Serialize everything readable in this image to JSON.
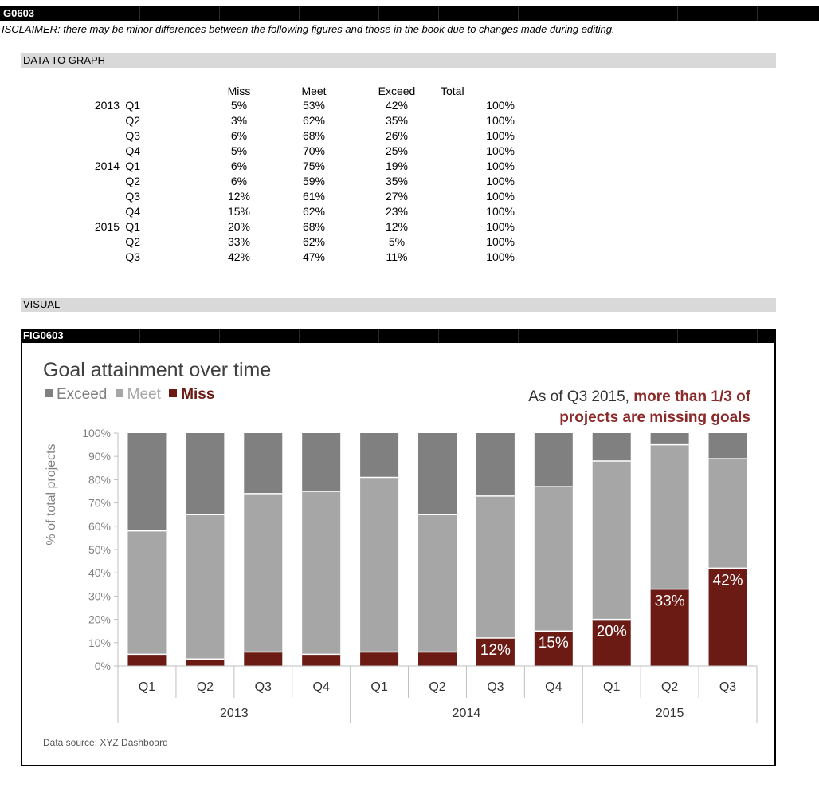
{
  "header": {
    "code": "G0603",
    "disclaimer": "ISCLAIMER: there may be minor differences between the following figures and those in the book due to changes made during editing."
  },
  "sections": {
    "data_title": "DATA TO GRAPH",
    "visual_title": "VISUAL"
  },
  "table": {
    "headers": {
      "miss": "Miss",
      "meet": "Meet",
      "exceed": "Exceed",
      "total": "Total"
    },
    "rows": [
      {
        "year": "2013",
        "quarter": "Q1",
        "miss": "5%",
        "meet": "53%",
        "exceed": "42%",
        "total": "100%"
      },
      {
        "year": "",
        "quarter": "Q2",
        "miss": "3%",
        "meet": "62%",
        "exceed": "35%",
        "total": "100%"
      },
      {
        "year": "",
        "quarter": "Q3",
        "miss": "6%",
        "meet": "68%",
        "exceed": "26%",
        "total": "100%"
      },
      {
        "year": "",
        "quarter": "Q4",
        "miss": "5%",
        "meet": "70%",
        "exceed": "25%",
        "total": "100%"
      },
      {
        "year": "2014",
        "quarter": "Q1",
        "miss": "6%",
        "meet": "75%",
        "exceed": "19%",
        "total": "100%"
      },
      {
        "year": "",
        "quarter": "Q2",
        "miss": "6%",
        "meet": "59%",
        "exceed": "35%",
        "total": "100%"
      },
      {
        "year": "",
        "quarter": "Q3",
        "miss": "12%",
        "meet": "61%",
        "exceed": "27%",
        "total": "100%"
      },
      {
        "year": "",
        "quarter": "Q4",
        "miss": "15%",
        "meet": "62%",
        "exceed": "23%",
        "total": "100%"
      },
      {
        "year": "2015",
        "quarter": "Q1",
        "miss": "20%",
        "meet": "68%",
        "exceed": "12%",
        "total": "100%"
      },
      {
        "year": "",
        "quarter": "Q2",
        "miss": "33%",
        "meet": "62%",
        "exceed": "5%",
        "total": "100%"
      },
      {
        "year": "",
        "quarter": "Q3",
        "miss": "42%",
        "meet": "47%",
        "exceed": "11%",
        "total": "100%"
      }
    ]
  },
  "figure": {
    "code": "FIG0603",
    "legend": {
      "exceed": "Exceed",
      "meet": "Meet",
      "miss": "Miss"
    },
    "annotation": {
      "plain": "As of Q3 2015, ",
      "highlight_1": "more than 1/3 of",
      "highlight_2": "projects are missing goals"
    },
    "source": "Data source: XYZ Dashboard"
  },
  "colors": {
    "exceed": "#808080",
    "meet": "#a6a6a6",
    "miss": "#6b1a14",
    "highlight": "#8b2a2a"
  },
  "chart_data": {
    "type": "bar",
    "stacked": true,
    "title": "Goal attainment over time",
    "ylabel": "% of total projects",
    "xlabel": "",
    "ylim": [
      0,
      100
    ],
    "yticks": [
      "0%",
      "10%",
      "20%",
      "30%",
      "40%",
      "50%",
      "60%",
      "70%",
      "80%",
      "90%",
      "100%"
    ],
    "categories": [
      "Q1",
      "Q2",
      "Q3",
      "Q4",
      "Q1",
      "Q2",
      "Q3",
      "Q4",
      "Q1",
      "Q2",
      "Q3"
    ],
    "groups": [
      {
        "label": "2013",
        "count": 4
      },
      {
        "label": "2014",
        "count": 4
      },
      {
        "label": "2015",
        "count": 3
      }
    ],
    "series": [
      {
        "name": "Miss",
        "values": [
          5,
          3,
          6,
          5,
          6,
          6,
          12,
          15,
          20,
          33,
          42
        ]
      },
      {
        "name": "Meet",
        "values": [
          53,
          62,
          68,
          70,
          75,
          59,
          61,
          62,
          68,
          62,
          47
        ]
      },
      {
        "name": "Exceed",
        "values": [
          42,
          35,
          26,
          25,
          19,
          35,
          27,
          23,
          12,
          5,
          11
        ]
      }
    ],
    "data_labels": [
      "",
      "",
      "",
      "",
      "",
      "",
      "12%",
      "15%",
      "20%",
      "33%",
      "42%"
    ]
  }
}
